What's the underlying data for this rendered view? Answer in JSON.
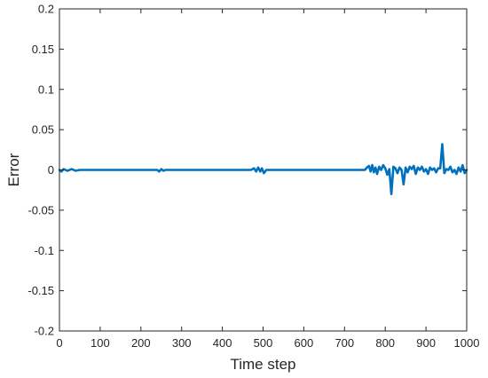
{
  "chart_data": {
    "type": "line",
    "title": "",
    "xlabel": "Time step",
    "ylabel": "Error",
    "xlim": [
      0,
      1000
    ],
    "ylim": [
      -0.2,
      0.2
    ],
    "x_ticks": [
      "0",
      "100",
      "200",
      "300",
      "400",
      "500",
      "600",
      "700",
      "800",
      "900",
      "1000"
    ],
    "y_ticks": [
      "-0.2",
      "-0.15",
      "-0.1",
      "-0.05",
      "0",
      "0.05",
      "0.1",
      "0.15",
      "0.2"
    ],
    "x_tick_values": [
      0,
      100,
      200,
      300,
      400,
      500,
      600,
      700,
      800,
      900,
      1000
    ],
    "y_tick_values": [
      -0.2,
      -0.15,
      -0.1,
      -0.05,
      0,
      0.05,
      0.1,
      0.15,
      0.2
    ],
    "grid": false,
    "series": [
      {
        "color": "#0072BD",
        "x": [
          0,
          5,
          10,
          20,
          30,
          40,
          50,
          80,
          120,
          160,
          200,
          240,
          245,
          250,
          255,
          260,
          300,
          350,
          400,
          450,
          470,
          478,
          483,
          488,
          493,
          497,
          502,
          508,
          530,
          580,
          630,
          680,
          720,
          750,
          755,
          760,
          764,
          768,
          772,
          776,
          780,
          785,
          790,
          795,
          800,
          805,
          810,
          815,
          820,
          825,
          830,
          835,
          840,
          845,
          850,
          855,
          860,
          865,
          870,
          875,
          880,
          885,
          890,
          895,
          900,
          905,
          910,
          915,
          920,
          925,
          930,
          935,
          940,
          945,
          950,
          955,
          960,
          965,
          970,
          975,
          980,
          985,
          990,
          995,
          1000
        ],
        "y": [
          0,
          -0.002,
          0.001,
          -0.001,
          0.001,
          -0.001,
          0,
          0,
          0,
          0,
          0,
          0,
          -0.002,
          0.001,
          -0.001,
          0,
          0,
          0,
          0,
          0,
          0,
          0.002,
          -0.002,
          0.003,
          -0.002,
          0.002,
          -0.004,
          0,
          0,
          0,
          0,
          0,
          0,
          0,
          0.003,
          0.005,
          -0.002,
          0.006,
          -0.003,
          0.003,
          -0.005,
          0.004,
          0,
          0.006,
          0.002,
          -0.006,
          0.001,
          -0.03,
          0.004,
          0.002,
          -0.004,
          0.003,
          0,
          -0.018,
          0.003,
          -0.003,
          0.004,
          0.001,
          0.005,
          -0.005,
          0.003,
          0,
          0.004,
          -0.002,
          0.001,
          -0.005,
          0.003,
          0,
          0.002,
          -0.003,
          0.002,
          0.002,
          0.032,
          -0.004,
          0.001,
          0,
          0.004,
          -0.003,
          0,
          -0.005,
          0.003,
          -0.002,
          0.006,
          -0.004,
          0
        ]
      }
    ]
  }
}
